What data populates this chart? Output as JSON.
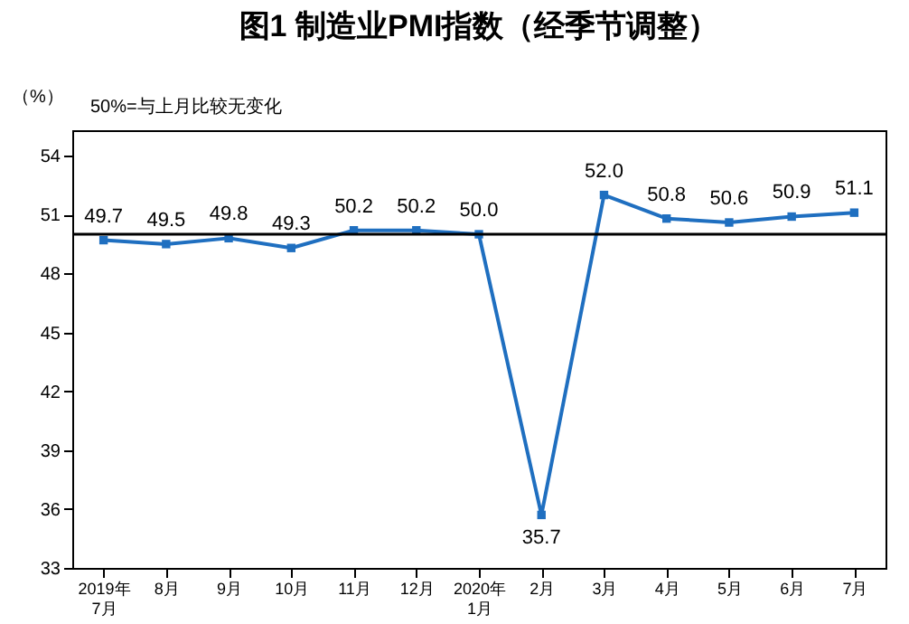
{
  "chart_data": {
    "type": "line",
    "title": "图1 制造业PMI指数（经季节调整）",
    "ylabel": "（%）",
    "annotations": [
      "50%=与上月比较无变化"
    ],
    "categories": [
      "2019年\n7月",
      "8月",
      "9月",
      "10月",
      "11月",
      "12月",
      "2020年\n1月",
      "2月",
      "3月",
      "4月",
      "5月",
      "6月",
      "7月"
    ],
    "series": [
      {
        "color": "#1f6fc0",
        "values": [
          49.7,
          49.5,
          49.8,
          49.3,
          50.2,
          50.2,
          50.0,
          35.7,
          52.0,
          50.8,
          50.6,
          50.9,
          51.1
        ],
        "value_labels": [
          "49.7",
          "49.5",
          "49.8",
          "49.3",
          "50.2",
          "50.2",
          "50.0",
          "35.7",
          "52.0",
          "50.8",
          "50.6",
          "50.9",
          "51.1"
        ]
      }
    ],
    "ylim": [
      33,
      55.3
    ],
    "yticks": [
      33,
      36,
      39,
      42,
      45,
      48,
      51,
      54
    ],
    "ref_lines": [
      {
        "axis": "y",
        "value": 50,
        "color": "#000000"
      }
    ],
    "marker": "square",
    "grid": false
  }
}
